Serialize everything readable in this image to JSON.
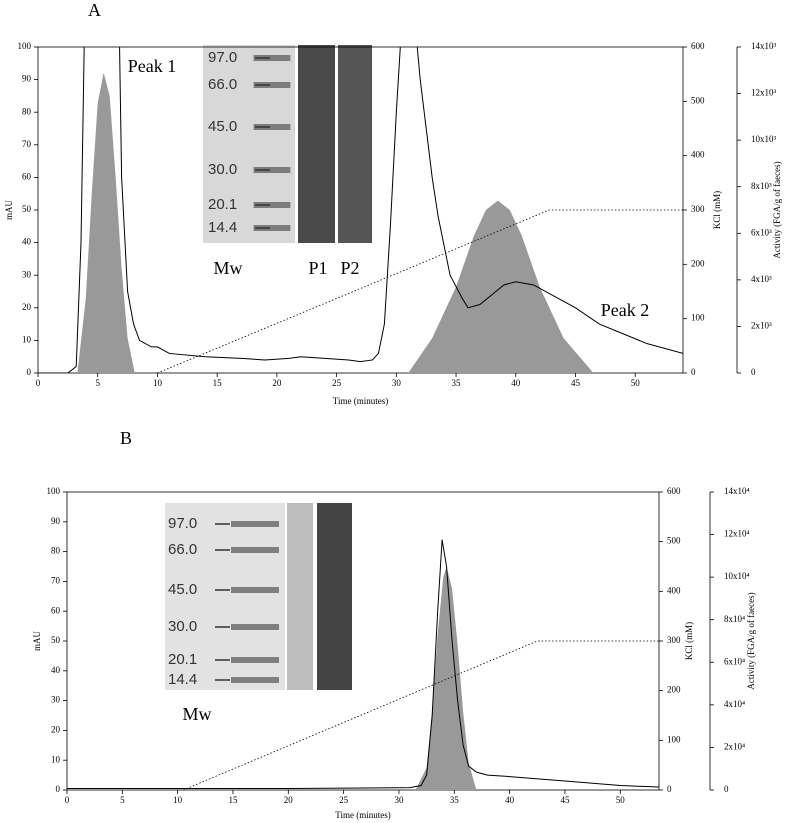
{
  "chart_data": [
    {
      "type": "line",
      "panel_label": "A",
      "x_label": "Time (minutes)",
      "y_label": "mAU",
      "y2_label": "KCl (mM)",
      "y3_label": "Activity (FGA/g of faeces)",
      "xlim": [
        0,
        54
      ],
      "xticks": [
        0,
        5,
        10,
        15,
        20,
        25,
        30,
        35,
        40,
        45,
        50
      ],
      "ylim": [
        0,
        100
      ],
      "yticks": [
        0,
        10,
        20,
        30,
        40,
        50,
        60,
        70,
        80,
        90,
        100
      ],
      "y2lim": [
        0,
        600
      ],
      "y2ticks": [
        0,
        100,
        200,
        300,
        400,
        500,
        600
      ],
      "y3lim": [
        0,
        14000
      ],
      "y3ticks": [
        0,
        {
          "value": 2000,
          "label": "2x10³"
        },
        {
          "value": 4000,
          "label": "4x10³"
        },
        {
          "value": 6000,
          "label": "6x10³"
        },
        {
          "value": 8000,
          "label": "8x10³"
        },
        {
          "value": 10000,
          "label": "10x10³"
        },
        {
          "value": 12000,
          "label": "12x10³"
        },
        {
          "value": 14000,
          "label": "14x10³"
        }
      ],
      "series": [
        {
          "mark": "area",
          "axis": "y3",
          "color": "#999999",
          "x": [
            3.3,
            4,
            4.5,
            5,
            5.5,
            6,
            6.5,
            7,
            7.5,
            8.1,
            31,
            33,
            35,
            36.5,
            37.5,
            38.5,
            39.5,
            40.5,
            42,
            44,
            46.5
          ],
          "values": [
            0,
            3200,
            7700,
            11600,
            12900,
            11900,
            8400,
            4500,
            1500,
            0,
            0,
            1500,
            3700,
            5900,
            7000,
            7400,
            7000,
            5900,
            3700,
            1500,
            0
          ]
        },
        {
          "mark": "line",
          "axis": "y",
          "color": "#000000",
          "x": [
            0,
            2.5,
            3.2,
            3.6,
            4.0,
            6.7,
            7.0,
            7.5,
            8.0,
            8.5,
            9.5,
            10,
            11,
            14,
            17,
            19,
            21,
            22,
            24,
            26,
            27,
            28,
            28.5,
            29,
            29.5,
            30,
            30.5,
            31.5,
            32,
            32.5,
            33,
            33.5,
            34.5,
            35.5,
            36,
            37,
            38,
            39,
            40,
            41.5,
            43,
            45,
            47,
            49,
            51,
            54
          ],
          "values": [
            0,
            0,
            2,
            40,
            130,
            130,
            60,
            25,
            15,
            10,
            8,
            8,
            6,
            5,
            4.5,
            4,
            4.5,
            5,
            4.5,
            4,
            3.5,
            4,
            6,
            15,
            45,
            80,
            110,
            110,
            90,
            75,
            60,
            48,
            30,
            23,
            20,
            21,
            24,
            27,
            28,
            27,
            24,
            20,
            15,
            12,
            9,
            6
          ]
        },
        {
          "mark": "line",
          "axis": "y2",
          "style": "dotted",
          "color": "#000000",
          "x": [
            10,
            42.8,
            54
          ],
          "values": [
            0,
            300,
            300
          ]
        }
      ],
      "annotations": [
        "Peak 1",
        "Peak 2"
      ],
      "gel": {
        "markers": [
          "97.0",
          "66.0",
          "45.0",
          "30.0",
          "20.1",
          "14.4"
        ],
        "lanes": [
          "Mw",
          "P1",
          "P2"
        ]
      }
    },
    {
      "type": "line",
      "panel_label": "B",
      "x_label": "Time (minutes)",
      "y_label": "mAU",
      "y2_label": "KCl (mM)",
      "y3_label": "Activity (FGA/g of faeces)",
      "xlim": [
        0,
        53.5
      ],
      "xticks": [
        0,
        5,
        10,
        15,
        20,
        25,
        30,
        35,
        40,
        45,
        50
      ],
      "ylim": [
        0,
        100
      ],
      "yticks": [
        0,
        10,
        20,
        30,
        40,
        50,
        60,
        70,
        80,
        90,
        100
      ],
      "y2lim": [
        0,
        600
      ],
      "y2ticks": [
        0,
        100,
        200,
        300,
        400,
        500,
        600
      ],
      "y3lim": [
        0,
        140000
      ],
      "y3ticks": [
        0,
        {
          "value": 20000,
          "label": "2x10⁴"
        },
        {
          "value": 40000,
          "label": "4x10⁴"
        },
        {
          "value": 60000,
          "label": "6x10⁴"
        },
        {
          "value": 80000,
          "label": "8x10⁴"
        },
        {
          "value": 100000,
          "label": "10x10⁴"
        },
        {
          "value": 120000,
          "label": "12x10⁴"
        },
        {
          "value": 140000,
          "label": "14x10⁴"
        }
      ],
      "series": [
        {
          "mark": "area",
          "axis": "y3",
          "color": "#999999",
          "x": [
            31.5,
            32.5,
            33,
            33.5,
            34,
            34.3,
            34.8,
            35.3,
            35.8,
            36.3,
            37
          ],
          "values": [
            0,
            10500,
            36750,
            73500,
            99750,
            105000,
            94500,
            68250,
            36750,
            12600,
            0
          ]
        },
        {
          "mark": "line",
          "axis": "y",
          "color": "#000000",
          "x": [
            0,
            10,
            20,
            31,
            32,
            32.5,
            33,
            33.5,
            33.9,
            34.3,
            34.8,
            35.3,
            35.8,
            36.3,
            37,
            38,
            40,
            45,
            50,
            53.5
          ],
          "values": [
            0.5,
            0.5,
            0.5,
            0.8,
            1.5,
            5,
            25,
            60,
            84,
            75,
            50,
            30,
            15,
            8,
            6,
            5,
            4.5,
            3,
            1.5,
            1
          ]
        },
        {
          "mark": "line",
          "axis": "y2",
          "style": "dotted",
          "color": "#000000",
          "x": [
            10.5,
            42.5,
            53.5
          ],
          "values": [
            0,
            300,
            300
          ]
        }
      ],
      "gel": {
        "markers": [
          "97.0",
          "66.0",
          "45.0",
          "30.0",
          "20.1",
          "14.4"
        ],
        "lanes": [
          "Mw"
        ]
      }
    }
  ]
}
